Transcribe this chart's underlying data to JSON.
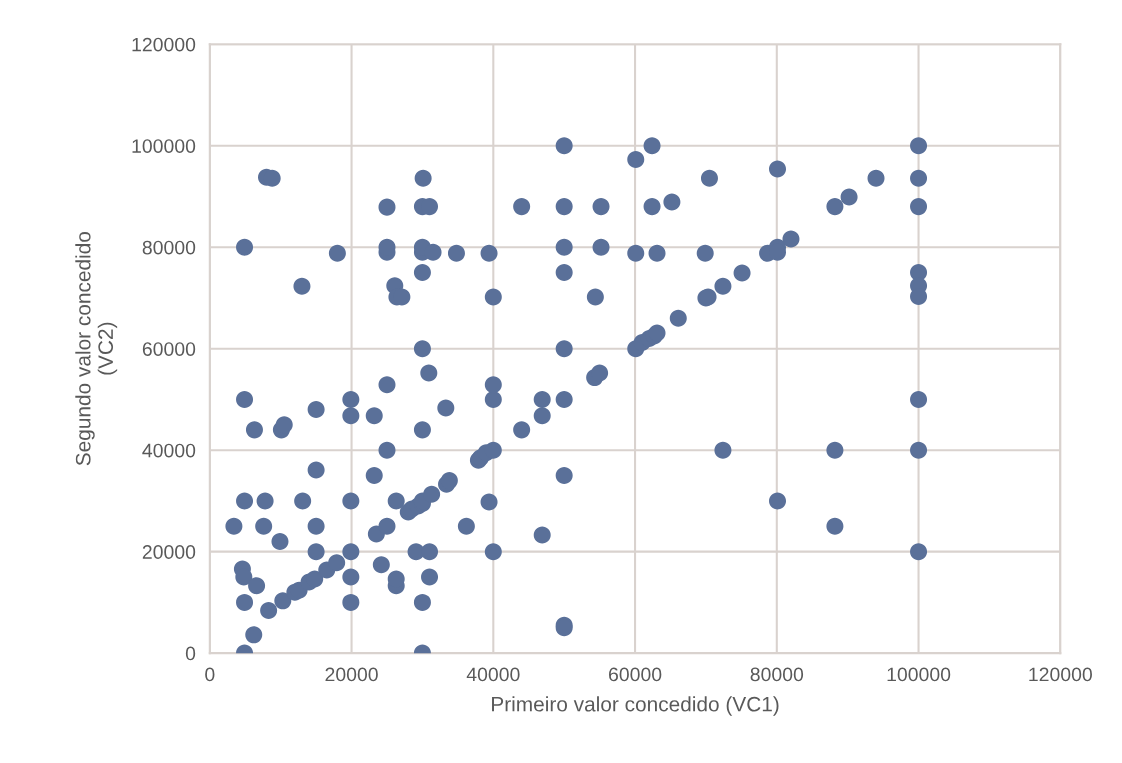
{
  "chart_data": {
    "type": "scatter",
    "xlabel": "Primeiro valor concedido (VC1)",
    "ylabel": "Segundo valor concedido\n(VC2)",
    "xlim": [
      0,
      120000
    ],
    "ylim": [
      0,
      120000
    ],
    "xticks": [
      0,
      20000,
      40000,
      60000,
      80000,
      100000,
      120000
    ],
    "yticks": [
      0,
      20000,
      40000,
      60000,
      80000,
      100000,
      120000
    ],
    "grid": true,
    "marker": "circle",
    "series": [
      {
        "color": "#5a7099",
        "x": [
          3400,
          4600,
          4800,
          4900,
          4900,
          4900,
          4900,
          4900,
          6200,
          6300,
          6600,
          7600,
          7800,
          8000,
          8800,
          8300,
          9900,
          10100,
          10500,
          10300,
          12000,
          12600,
          13000,
          13100,
          14000,
          14800,
          15000,
          15000,
          15000,
          15000,
          16500,
          17900,
          18000,
          19900,
          19900,
          19900,
          19900,
          19900,
          19900,
          23200,
          23200,
          23500,
          24200,
          25000,
          25000,
          25000,
          25000,
          25000,
          25000,
          26100,
          26300,
          26300,
          26300,
          26400,
          27100,
          28000,
          28500,
          29100,
          29400,
          30000,
          30000,
          30000,
          30000,
          30000,
          30000,
          30000,
          30000,
          30000,
          30000,
          30100,
          31000,
          30900,
          31000,
          31000,
          31300,
          31500,
          33300,
          33400,
          33800,
          34800,
          36200,
          37900,
          38200,
          39000,
          39400,
          39400,
          40000,
          40000,
          40000,
          40000,
          40000,
          44000,
          44000,
          46900,
          46900,
          46900,
          50000,
          50000,
          50000,
          50000,
          50000,
          50000,
          50000,
          50000,
          50000,
          54300,
          55000,
          54400,
          55200,
          55200,
          60100,
          60100,
          60100,
          61000,
          62000,
          62400,
          62400,
          62700,
          63100,
          63100,
          65200,
          66100,
          69900,
          70000,
          70300,
          70500,
          72400,
          72400,
          75100,
          78700,
          80100,
          80100,
          80100,
          80100,
          82000,
          88200,
          88200,
          88200,
          90200,
          94000,
          100000,
          100000,
          100000,
          100000,
          100000,
          100000,
          100000,
          100000,
          100000
        ],
        "values": [
          25000,
          16600,
          15000,
          10000,
          0,
          30000,
          50000,
          80000,
          3600,
          44000,
          13300,
          25000,
          30000,
          93800,
          93600,
          8400,
          22000,
          44000,
          45000,
          10300,
          12000,
          12400,
          72300,
          30000,
          14000,
          14600,
          48000,
          36100,
          25000,
          20000,
          16400,
          17800,
          78800,
          10000,
          15000,
          20000,
          30000,
          46800,
          50000,
          46800,
          35000,
          23500,
          17400,
          25000,
          40000,
          52900,
          79000,
          80000,
          87900,
          72400,
          13300,
          14600,
          30000,
          70200,
          70200,
          27800,
          28400,
          20000,
          29000,
          29500,
          30000,
          10000,
          0,
          44000,
          60000,
          75000,
          79000,
          80000,
          88000,
          93600,
          88000,
          55200,
          20000,
          15000,
          31300,
          79000,
          48300,
          33300,
          34000,
          78800,
          25000,
          38000,
          38500,
          39500,
          29800,
          78800,
          40000,
          20000,
          50000,
          52900,
          70200,
          44000,
          88000,
          50000,
          46800,
          23300,
          5500,
          5000,
          35000,
          50000,
          60000,
          75000,
          80000,
          88000,
          100000,
          54300,
          55200,
          70200,
          80000,
          88000,
          60000,
          97300,
          78800,
          61200,
          62000,
          100000,
          88000,
          62500,
          63100,
          78800,
          88900,
          66000,
          78800,
          70000,
          70200,
          93600,
          72300,
          40000,
          74900,
          78800,
          80000,
          79000,
          95400,
          30000,
          81600,
          88000,
          40000,
          25000,
          89900,
          93600,
          100000,
          93600,
          88000,
          75000,
          72400,
          70300,
          50000,
          40000,
          20000
        ]
      }
    ]
  }
}
